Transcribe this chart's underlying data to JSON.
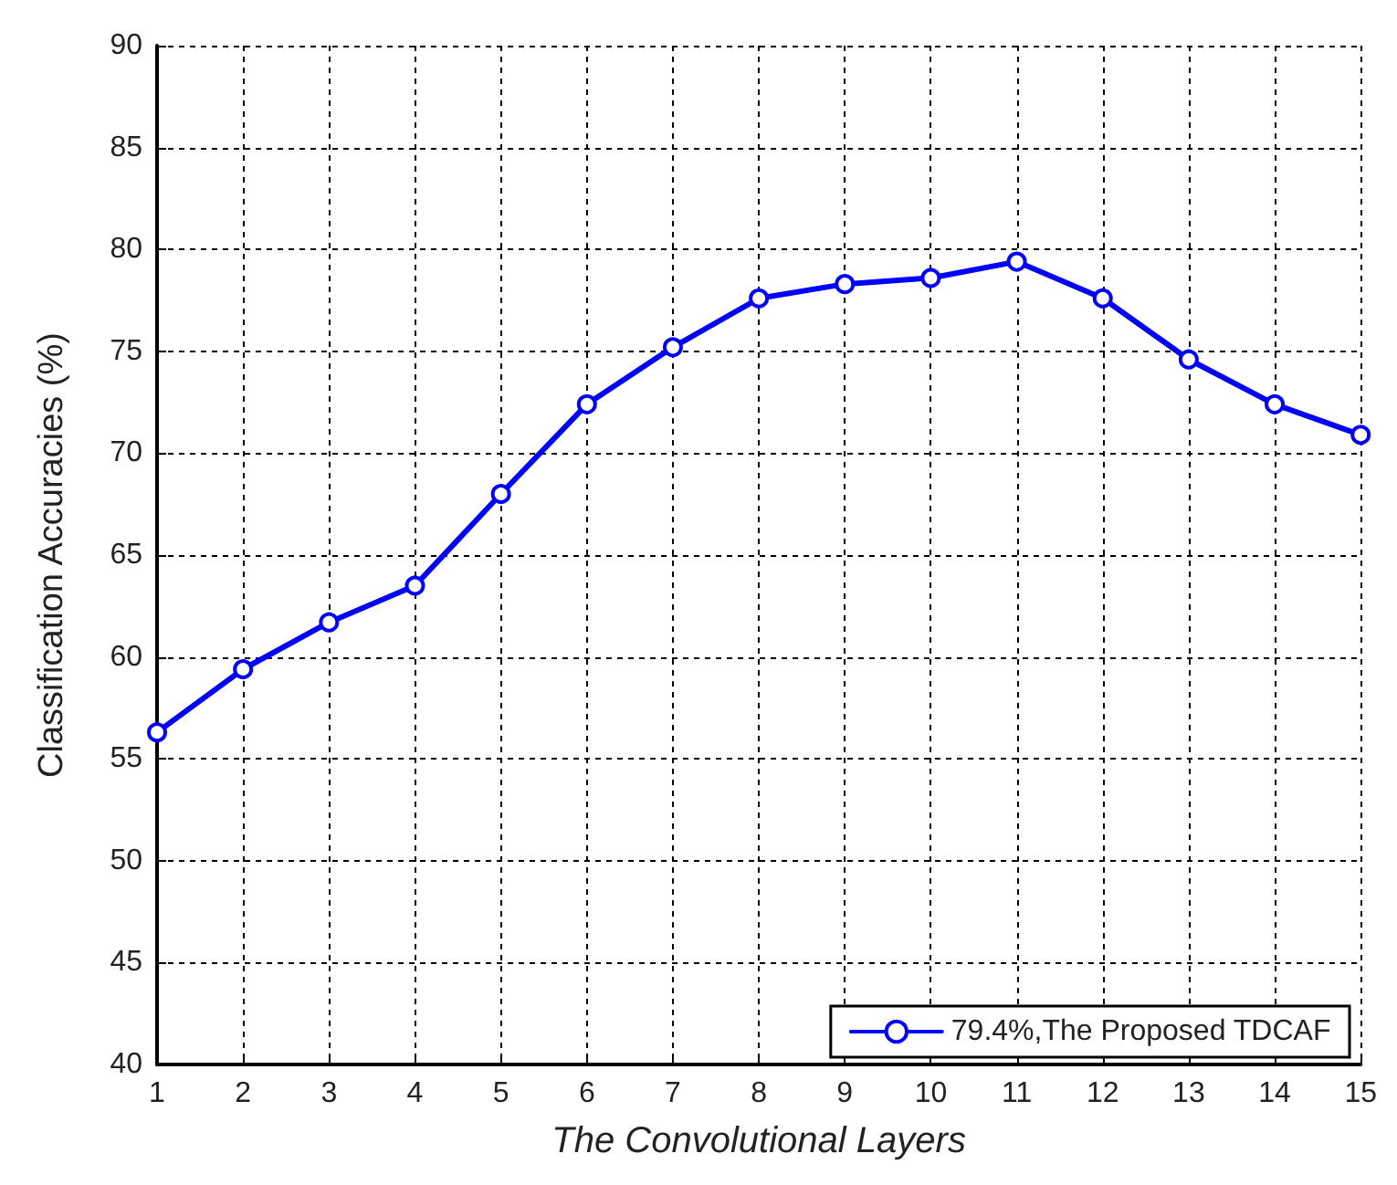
{
  "chart_data": {
    "type": "line",
    "xlabel": "The Convolutional Layers",
    "ylabel": "Classification Accuracies (%)",
    "x": [
      1,
      2,
      3,
      4,
      5,
      6,
      7,
      8,
      9,
      10,
      11,
      12,
      13,
      14,
      15
    ],
    "series": [
      {
        "name": "79.4%,The Proposed TDCAF",
        "color": "#0000ff",
        "values": [
          56.3,
          59.4,
          61.7,
          63.5,
          68.0,
          72.4,
          75.2,
          77.6,
          78.3,
          78.6,
          79.4,
          77.6,
          74.6,
          72.4,
          70.9
        ]
      }
    ],
    "xlim": [
      1,
      15
    ],
    "xticks": [
      1,
      2,
      3,
      4,
      5,
      6,
      7,
      8,
      9,
      10,
      11,
      12,
      13,
      14,
      15
    ],
    "ylim": [
      40,
      90
    ],
    "yticks": [
      40,
      45,
      50,
      55,
      60,
      65,
      70,
      75,
      80,
      85,
      90
    ],
    "grid": true,
    "legend": "bottom right",
    "marker": "circle",
    "line_style": "solid"
  }
}
